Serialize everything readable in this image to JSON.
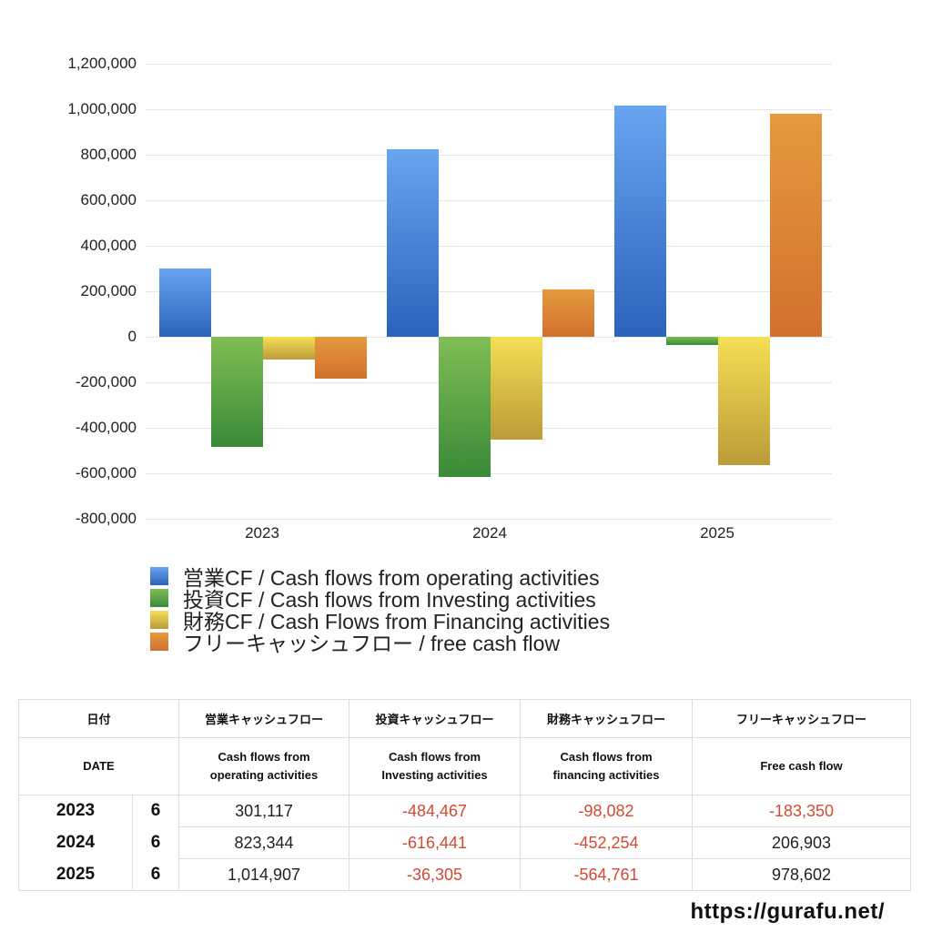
{
  "chart_data": {
    "type": "bar",
    "title": "",
    "xlabel": "",
    "ylabel": "",
    "categories": [
      "2023",
      "2024",
      "2025"
    ],
    "series": [
      {
        "name": "営業CF / Cash flows from operating activities",
        "color": "#4a86d8",
        "values": [
          301117,
          823344,
          1014907
        ]
      },
      {
        "name": "投資CF / Cash flows from Investing activities",
        "color": "#5ba145",
        "values": [
          -484467,
          -616441,
          -36305
        ]
      },
      {
        "name": "財務CF / Cash Flows from Financing activities",
        "color": "#e0c448",
        "values": [
          -98082,
          -452254,
          -564761
        ]
      },
      {
        "name": "フリーキャッシュフロー / free cash flow",
        "color": "#dd8434",
        "values": [
          -183350,
          206903,
          978602
        ]
      }
    ],
    "ylim": [
      -800000,
      1200000
    ],
    "yticks": [
      "1,200,000",
      "1,000,000",
      "800,000",
      "600,000",
      "400,000",
      "200,000",
      "0",
      "-200,000",
      "-400,000",
      "-600,000",
      "-800,000"
    ],
    "grid": true,
    "legend_position": "bottom"
  },
  "table": {
    "header_jp": {
      "date": "日付",
      "operating": "営業キャッシュフロー",
      "investing": "投資キャッシュフロー",
      "financing": "財務キャッシュフロー",
      "free": "フリーキャッシュフロー"
    },
    "header_en": {
      "date": "DATE",
      "operating_1": "Cash flows from",
      "operating_2": "operating activities",
      "investing_1": "Cash flows from",
      "investing_2": "Investing activities",
      "financing_1": "Cash flows from",
      "financing_2": "financing activities",
      "free": "Free cash flow"
    },
    "rows": [
      {
        "year": "2023",
        "month": "6",
        "operating": "301,117",
        "investing": "-484,467",
        "financing": "-98,082",
        "free": "-183,350"
      },
      {
        "year": "2024",
        "month": "6",
        "operating": "823,344",
        "investing": "-616,441",
        "financing": "-452,254",
        "free": "206,903"
      },
      {
        "year": "2025",
        "month": "6",
        "operating": "1,014,907",
        "investing": "-36,305",
        "financing": "-564,761",
        "free": "978,602"
      }
    ]
  },
  "footer": {
    "url": "https://gurafu.net/"
  }
}
